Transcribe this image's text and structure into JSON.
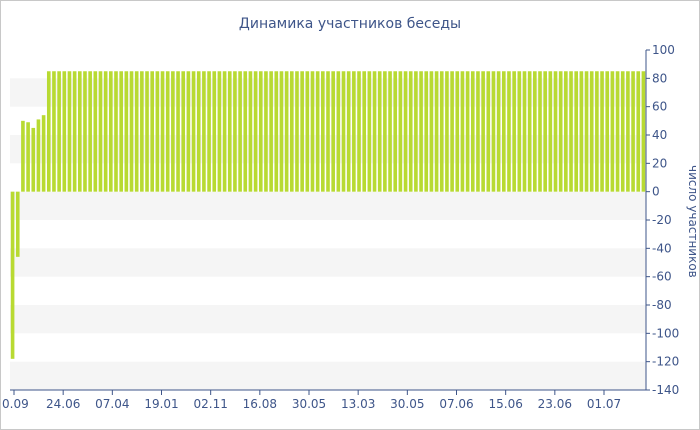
{
  "chart_data": {
    "type": "bar",
    "title": "Динамика участников беседы",
    "ylabel": "число участников",
    "xlabel": "",
    "ylim": [
      -140,
      100
    ],
    "y_ticks": [
      100,
      80,
      60,
      40,
      20,
      0,
      -20,
      -40,
      -60,
      -80,
      -100,
      -120,
      -140
    ],
    "x_tick_labels": [
      "0.09",
      "24.06",
      "07.04",
      "19.01",
      "02.11",
      "16.08",
      "30.05",
      "13.03",
      "30.05",
      "07.06",
      "15.06",
      "23.06",
      "01.07"
    ],
    "grid": "horizontal bands",
    "y_axis_position": "right",
    "bar_color": "#b8da32",
    "band_color": "#f5f5f5",
    "axis_color": "#3e5589",
    "values": [
      -118,
      -46,
      50,
      49,
      45,
      51,
      54,
      85,
      85,
      85,
      85,
      85,
      85,
      85,
      85,
      85,
      85,
      85,
      85,
      85,
      85,
      85,
      85,
      85,
      85,
      85,
      85,
      85,
      85,
      85,
      85,
      85,
      85,
      85,
      85,
      85,
      85,
      85,
      85,
      85,
      85,
      85,
      85,
      85,
      85,
      85,
      85,
      85,
      85,
      85,
      85,
      85,
      85,
      85,
      85,
      85,
      85,
      85,
      85,
      85,
      85,
      85,
      85,
      85,
      85,
      85,
      85,
      85,
      85,
      85,
      85,
      85,
      85,
      85,
      85,
      85,
      85,
      85,
      85,
      85,
      85,
      85,
      85,
      85,
      85,
      85,
      85,
      85,
      85,
      85,
      85,
      85,
      85,
      85,
      85,
      85,
      85,
      85,
      85,
      85,
      85,
      85,
      85,
      85,
      85,
      85,
      85,
      85,
      85,
      85,
      85,
      85,
      85,
      85,
      85,
      85,
      85,
      85,
      85,
      85,
      85,
      85,
      85
    ]
  }
}
